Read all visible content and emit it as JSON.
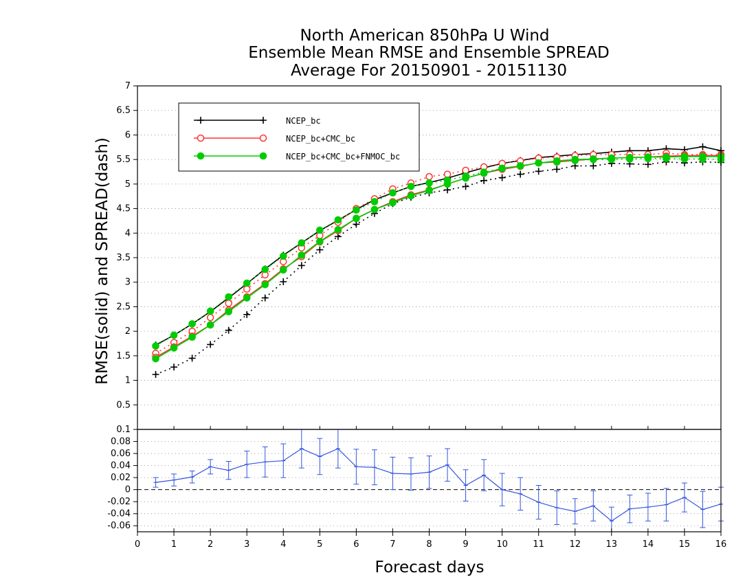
{
  "chart_data": [
    {
      "type": "line",
      "title_lines": [
        "North American 850hPa U Wind",
        "Ensemble Mean RMSE and Ensemble SPREAD",
        "Average For 20150901 - 20151130"
      ],
      "xlabel": "Forecast days",
      "ylabel": "RMSE(solid) and SPREAD(dash)",
      "xlim": [
        0,
        16
      ],
      "ylim": [
        0,
        7
      ],
      "grid": true,
      "legend_placement": "top-left",
      "yticks": [
        "0.5",
        "1",
        "1.5",
        "2",
        "2.5",
        "3",
        "3.5",
        "4",
        "4.5",
        "5",
        "5.5",
        "6",
        "6.5",
        "7"
      ],
      "x": [
        0.5,
        1,
        1.5,
        2,
        2.5,
        3,
        3.5,
        4,
        4.5,
        5,
        5.5,
        6,
        6.5,
        7,
        7.5,
        8,
        8.5,
        9,
        9.5,
        10,
        10.5,
        11,
        11.5,
        12,
        12.5,
        13,
        13.5,
        14,
        14.5,
        15,
        15.5,
        16
      ],
      "series": [
        {
          "name": "NCEP_bc",
          "color": "#000000",
          "marker": "plus",
          "rmse": [
            1.72,
            1.92,
            2.15,
            2.4,
            2.68,
            2.97,
            3.27,
            3.55,
            3.8,
            4.05,
            4.26,
            4.48,
            4.68,
            4.82,
            4.95,
            5.03,
            5.12,
            5.23,
            5.33,
            5.42,
            5.48,
            5.54,
            5.57,
            5.6,
            5.62,
            5.65,
            5.68,
            5.68,
            5.72,
            5.7,
            5.76,
            5.68
          ],
          "spread": [
            1.12,
            1.27,
            1.45,
            1.73,
            2.02,
            2.34,
            2.68,
            3.01,
            3.34,
            3.66,
            3.93,
            4.18,
            4.4,
            4.6,
            4.73,
            4.82,
            4.88,
            4.95,
            5.07,
            5.13,
            5.2,
            5.26,
            5.3,
            5.37,
            5.37,
            5.42,
            5.41,
            5.4,
            5.45,
            5.43,
            5.45,
            5.44
          ]
        },
        {
          "name": "NCEP_bc+CMC_bc",
          "color": "#ff3333",
          "marker": "open-circle",
          "rmse": [
            1.47,
            1.68,
            1.9,
            2.13,
            2.43,
            2.7,
            2.97,
            3.27,
            3.52,
            3.82,
            4.05,
            4.3,
            4.48,
            4.64,
            4.78,
            4.88,
            5.0,
            5.12,
            5.22,
            5.3,
            5.36,
            5.43,
            5.45,
            5.48,
            5.51,
            5.53,
            5.54,
            5.55,
            5.57,
            5.58,
            5.58,
            5.58
          ],
          "spread": [
            1.55,
            1.77,
            2.0,
            2.28,
            2.57,
            2.86,
            3.15,
            3.42,
            3.7,
            3.95,
            4.22,
            4.5,
            4.7,
            4.9,
            5.02,
            5.15,
            5.2,
            5.28,
            5.35,
            5.42,
            5.47,
            5.53,
            5.55,
            5.58,
            5.6,
            5.6,
            5.6,
            5.6,
            5.63,
            5.6,
            5.6,
            5.6
          ]
        },
        {
          "name": "NCEP_bc+CMC_bc+FNMOC_bc",
          "color": "#00cc00",
          "marker": "filled-circle",
          "rmse": [
            1.44,
            1.66,
            1.88,
            2.13,
            2.4,
            2.68,
            2.95,
            3.25,
            3.55,
            3.83,
            4.07,
            4.3,
            4.48,
            4.62,
            4.76,
            4.87,
            5.0,
            5.12,
            5.22,
            5.32,
            5.37,
            5.43,
            5.47,
            5.5,
            5.51,
            5.53,
            5.54,
            5.55,
            5.55,
            5.56,
            5.56,
            5.56
          ],
          "spread": [
            1.7,
            1.92,
            2.15,
            2.41,
            2.7,
            2.98,
            3.26,
            3.53,
            3.8,
            4.06,
            4.27,
            4.47,
            4.64,
            4.82,
            4.95,
            5.02,
            5.08,
            5.16,
            5.24,
            5.32,
            5.37,
            5.43,
            5.45,
            5.48,
            5.5,
            5.5,
            5.51,
            5.52,
            5.52,
            5.51,
            5.51,
            5.5
          ]
        }
      ]
    },
    {
      "type": "line",
      "xlabel": "Forecast days",
      "xlim": [
        0,
        16
      ],
      "ylim": [
        -0.07,
        0.1
      ],
      "grid": true,
      "yticks": [
        "-0.06",
        "-0.04",
        "-0.02",
        "0",
        "0.02",
        "0.04",
        "0.06",
        "0.08",
        "0.1"
      ],
      "xticks": [
        "0",
        "1",
        "2",
        "3",
        "4",
        "5",
        "6",
        "7",
        "8",
        "9",
        "10",
        "11",
        "12",
        "13",
        "14",
        "15",
        "16"
      ],
      "reference_line": 0,
      "x": [
        0.5,
        1,
        1.5,
        2,
        2.5,
        3,
        3.5,
        4,
        4.5,
        5,
        5.5,
        6,
        6.5,
        7,
        7.5,
        8,
        8.5,
        9,
        9.5,
        10,
        10.5,
        11,
        11.5,
        12,
        12.5,
        13,
        13.5,
        14,
        14.5,
        15,
        15.5,
        16
      ],
      "series": [
        {
          "color": "#3355dd",
          "values": [
            0.012,
            0.016,
            0.021,
            0.038,
            0.032,
            0.042,
            0.046,
            0.048,
            0.068,
            0.055,
            0.068,
            0.038,
            0.037,
            0.027,
            0.026,
            0.029,
            0.041,
            0.007,
            0.024,
            0.0,
            -0.007,
            -0.021,
            -0.03,
            -0.036,
            -0.027,
            -0.052,
            -0.032,
            -0.029,
            -0.025,
            -0.013,
            -0.033,
            -0.024
          ],
          "error": [
            0.008,
            0.01,
            0.01,
            0.012,
            0.015,
            0.022,
            0.025,
            0.028,
            0.032,
            0.03,
            0.032,
            0.029,
            0.029,
            0.027,
            0.027,
            0.027,
            0.027,
            0.026,
            0.026,
            0.027,
            0.027,
            0.028,
            0.028,
            0.021,
            0.025,
            0.023,
            0.023,
            0.023,
            0.027,
            0.024,
            0.03,
            0.028
          ]
        }
      ]
    }
  ]
}
